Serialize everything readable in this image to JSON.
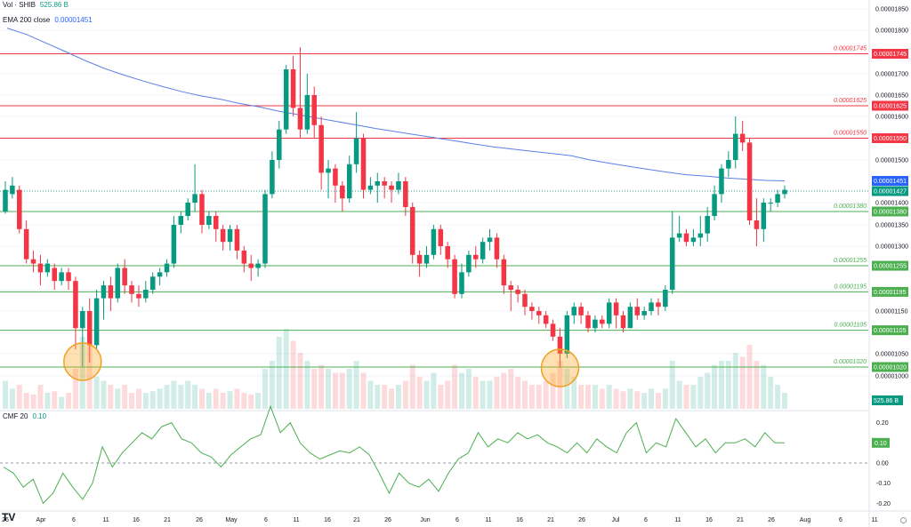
{
  "chart_data": {
    "type": "candlestick",
    "symbol": "SHIB",
    "y_axis": {
      "min": 9.5e-06,
      "max": 1.85e-05,
      "ticks": [
        "0.00001850",
        "0.00001800",
        "0.00001750",
        "0.00001700",
        "0.00001650",
        "0.00001600",
        "0.00001500",
        "0.00001400",
        "0.00001350",
        "0.00001300",
        "0.00001200",
        "0.00001150",
        "0.00001050",
        "0.00001000"
      ]
    },
    "x_axis": {
      "labels": [
        "26",
        "Apr",
        "6",
        "11",
        "16",
        "21",
        "26",
        "May",
        "6",
        "11",
        "16",
        "21",
        "26",
        "Jun",
        "6",
        "11",
        "16",
        "21",
        "26",
        "Jul",
        "6",
        "11",
        "16",
        "21",
        "26",
        "Aug",
        "6",
        "11"
      ]
    },
    "legends": {
      "volume": {
        "label": "Vol · SHIB",
        "value": "525.86 B"
      },
      "ema": {
        "label": "EMA 200 close",
        "value": "0.00001451"
      },
      "cmf": {
        "label": "CMF 20",
        "value": "0.10"
      }
    },
    "levels": [
      {
        "value": "0.00001745",
        "color": "#f23645"
      },
      {
        "value": "0.00001625",
        "color": "#f23645"
      },
      {
        "value": "0.00001550",
        "color": "#f23645"
      },
      {
        "value": "0.00001380",
        "color": "#4caf50"
      },
      {
        "value": "0.00001255",
        "color": "#4caf50"
      },
      {
        "value": "0.00001195",
        "color": "#4caf50"
      },
      {
        "value": "0.00001105",
        "color": "#4caf50"
      },
      {
        "value": "0.00001020",
        "color": "#4caf50"
      }
    ],
    "price_tags": [
      {
        "value": "0.00001451",
        "color": "#2962ff"
      },
      {
        "value": "0.00001427",
        "color": "#089981"
      }
    ],
    "volume_tag": {
      "value": "525.86 B",
      "color": "#089981"
    },
    "candles": [
      [
        1.38e-05,
        1.43e-05,
        1.375e-05,
        1.45e-05
      ],
      [
        1.42e-05,
        1.44e-05,
        1.41e-05,
        1.46e-05
      ],
      [
        1.43e-05,
        1.34e-05,
        1.33e-05,
        1.44e-05
      ],
      [
        1.34e-05,
        1.27e-05,
        1.26e-05,
        1.36e-05
      ],
      [
        1.27e-05,
        1.26e-05,
        1.24e-05,
        1.29e-05
      ],
      [
        1.26e-05,
        1.24e-05,
        1.21e-05,
        1.28e-05
      ],
      [
        1.24e-05,
        1.26e-05,
        1.23e-05,
        1.27e-05
      ],
      [
        1.25e-05,
        1.22e-05,
        1.2e-05,
        1.26e-05
      ],
      [
        1.22e-05,
        1.24e-05,
        1.21e-05,
        1.25e-05
      ],
      [
        1.24e-05,
        1.22e-05,
        1.2e-05,
        1.25e-05
      ],
      [
        1.22e-05,
        1.11e-05,
        1.06e-05,
        1.23e-05
      ],
      [
        1.11e-05,
        1.15e-05,
        1.02e-05,
        1.16e-05
      ],
      [
        1.15e-05,
        1.07e-05,
        1.03e-05,
        1.18e-05
      ],
      [
        1.07e-05,
        1.18e-05,
        1.06e-05,
        1.2e-05
      ],
      [
        1.18e-05,
        1.21e-05,
        1.13e-05,
        1.22e-05
      ],
      [
        1.21e-05,
        1.18e-05,
        1.15e-05,
        1.23e-05
      ],
      [
        1.18e-05,
        1.25e-05,
        1.17e-05,
        1.26e-05
      ],
      [
        1.25e-05,
        1.21e-05,
        1.19e-05,
        1.27e-05
      ],
      [
        1.21e-05,
        1.19e-05,
        1.17e-05,
        1.22e-05
      ],
      [
        1.19e-05,
        1.18e-05,
        1.16e-05,
        1.21e-05
      ],
      [
        1.18e-05,
        1.2e-05,
        1.17e-05,
        1.22e-05
      ],
      [
        1.2e-05,
        1.23e-05,
        1.19e-05,
        1.24e-05
      ],
      [
        1.23e-05,
        1.24e-05,
        1.21e-05,
        1.25e-05
      ],
      [
        1.24e-05,
        1.26e-05,
        1.23e-05,
        1.27e-05
      ],
      [
        1.26e-05,
        1.35e-05,
        1.25e-05,
        1.37e-05
      ],
      [
        1.35e-05,
        1.37e-05,
        1.33e-05,
        1.38e-05
      ],
      [
        1.37e-05,
        1.4e-05,
        1.36e-05,
        1.41e-05
      ],
      [
        1.4e-05,
        1.42e-05,
        1.38e-05,
        1.49e-05
      ],
      [
        1.42e-05,
        1.35e-05,
        1.33e-05,
        1.43e-05
      ],
      [
        1.35e-05,
        1.37e-05,
        1.34e-05,
        1.38e-05
      ],
      [
        1.37e-05,
        1.34e-05,
        1.31e-05,
        1.38e-05
      ],
      [
        1.34e-05,
        1.31e-05,
        1.29e-05,
        1.35e-05
      ],
      [
        1.31e-05,
        1.34e-05,
        1.29e-05,
        1.35e-05
      ],
      [
        1.34e-05,
        1.29e-05,
        1.27e-05,
        1.35e-05
      ],
      [
        1.29e-05,
        1.26e-05,
        1.24e-05,
        1.3e-05
      ],
      [
        1.26e-05,
        1.25e-05,
        1.22e-05,
        1.28e-05
      ],
      [
        1.25e-05,
        1.26e-05,
        1.23e-05,
        1.27e-05
      ],
      [
        1.26e-05,
        1.42e-05,
        1.25e-05,
        1.43e-05
      ],
      [
        1.42e-05,
        1.5e-05,
        1.41e-05,
        1.52e-05
      ],
      [
        1.5e-05,
        1.57e-05,
        1.48e-05,
        1.59e-05
      ],
      [
        1.57e-05,
        1.71e-05,
        1.56e-05,
        1.72e-05
      ],
      [
        1.71e-05,
        1.62e-05,
        1.6e-05,
        1.74e-05
      ],
      [
        1.62e-05,
        1.57e-05,
        1.55e-05,
        1.76e-05
      ],
      [
        1.57e-05,
        1.65e-05,
        1.56e-05,
        1.7e-05
      ],
      [
        1.65e-05,
        1.58e-05,
        1.55e-05,
        1.67e-05
      ],
      [
        1.58e-05,
        1.47e-05,
        1.43e-05,
        1.6e-05
      ],
      [
        1.47e-05,
        1.48e-05,
        1.41e-05,
        1.5e-05
      ],
      [
        1.48e-05,
        1.44e-05,
        1.4e-05,
        1.49e-05
      ],
      [
        1.44e-05,
        1.41e-05,
        1.38e-05,
        1.45e-05
      ],
      [
        1.41e-05,
        1.49e-05,
        1.4e-05,
        1.51e-05
      ],
      [
        1.49e-05,
        1.55e-05,
        1.47e-05,
        1.61e-05
      ],
      [
        1.55e-05,
        1.43e-05,
        1.41e-05,
        1.56e-05
      ],
      [
        1.43e-05,
        1.44e-05,
        1.42e-05,
        1.46e-05
      ],
      [
        1.44e-05,
        1.45e-05,
        1.4e-05,
        1.47e-05
      ],
      [
        1.45e-05,
        1.44e-05,
        1.41e-05,
        1.46e-05
      ],
      [
        1.44e-05,
        1.43e-05,
        1.4e-05,
        1.45e-05
      ],
      [
        1.43e-05,
        1.45e-05,
        1.42e-05,
        1.47e-05
      ],
      [
        1.45e-05,
        1.39e-05,
        1.37e-05,
        1.46e-05
      ],
      [
        1.39e-05,
        1.28e-05,
        1.26e-05,
        1.4e-05
      ],
      [
        1.28e-05,
        1.26e-05,
        1.23e-05,
        1.29e-05
      ],
      [
        1.26e-05,
        1.28e-05,
        1.25e-05,
        1.3e-05
      ],
      [
        1.28e-05,
        1.34e-05,
        1.27e-05,
        1.35e-05
      ],
      [
        1.34e-05,
        1.3e-05,
        1.28e-05,
        1.35e-05
      ],
      [
        1.3e-05,
        1.27e-05,
        1.25e-05,
        1.31e-05
      ],
      [
        1.27e-05,
        1.19e-05,
        1.18e-05,
        1.28e-05
      ],
      [
        1.19e-05,
        1.24e-05,
        1.18e-05,
        1.26e-05
      ],
      [
        1.24e-05,
        1.28e-05,
        1.23e-05,
        1.29e-05
      ],
      [
        1.28e-05,
        1.27e-05,
        1.25e-05,
        1.3e-05
      ],
      [
        1.27e-05,
        1.31e-05,
        1.26e-05,
        1.32e-05
      ],
      [
        1.31e-05,
        1.32e-05,
        1.29e-05,
        1.34e-05
      ],
      [
        1.32e-05,
        1.27e-05,
        1.25e-05,
        1.33e-05
      ],
      [
        1.27e-05,
        1.21e-05,
        1.19e-05,
        1.28e-05
      ],
      [
        1.21e-05,
        1.2e-05,
        1.15e-05,
        1.22e-05
      ],
      [
        1.2e-05,
        1.19e-05,
        1.17e-05,
        1.21e-05
      ],
      [
        1.19e-05,
        1.16e-05,
        1.14e-05,
        1.2e-05
      ],
      [
        1.16e-05,
        1.15e-05,
        1.13e-05,
        1.17e-05
      ],
      [
        1.15e-05,
        1.14e-05,
        1.12e-05,
        1.16e-05
      ],
      [
        1.14e-05,
        1.12e-05,
        1.11e-05,
        1.15e-05
      ],
      [
        1.12e-05,
        1.09e-05,
        1.08e-05,
        1.13e-05
      ],
      [
        1.09e-05,
        1.05e-05,
        1.02e-05,
        1.11e-05
      ],
      [
        1.05e-05,
        1.14e-05,
        1.04e-05,
        1.15e-05
      ],
      [
        1.14e-05,
        1.16e-05,
        1.12e-05,
        1.17e-05
      ],
      [
        1.16e-05,
        1.14e-05,
        1.12e-05,
        1.17e-05
      ],
      [
        1.14e-05,
        1.11e-05,
        1.1e-05,
        1.15e-05
      ],
      [
        1.11e-05,
        1.13e-05,
        1.1e-05,
        1.14e-05
      ],
      [
        1.13e-05,
        1.12e-05,
        1.11e-05,
        1.14e-05
      ],
      [
        1.12e-05,
        1.17e-05,
        1.11e-05,
        1.18e-05
      ],
      [
        1.17e-05,
        1.14e-05,
        1.11e-05,
        1.18e-05
      ],
      [
        1.14e-05,
        1.11e-05,
        1.1e-05,
        1.15e-05
      ],
      [
        1.11e-05,
        1.16e-05,
        1.11e-05,
        1.17e-05
      ],
      [
        1.16e-05,
        1.14e-05,
        1.13e-05,
        1.18e-05
      ],
      [
        1.14e-05,
        1.15e-05,
        1.13e-05,
        1.16e-05
      ],
      [
        1.15e-05,
        1.17e-05,
        1.14e-05,
        1.18e-05
      ],
      [
        1.17e-05,
        1.16e-05,
        1.14e-05,
        1.18e-05
      ],
      [
        1.16e-05,
        1.2e-05,
        1.15e-05,
        1.21e-05
      ],
      [
        1.2e-05,
        1.32e-05,
        1.19e-05,
        1.38e-05
      ],
      [
        1.32e-05,
        1.33e-05,
        1.31e-05,
        1.37e-05
      ],
      [
        1.33e-05,
        1.31e-05,
        1.3e-05,
        1.34e-05
      ],
      [
        1.31e-05,
        1.32e-05,
        1.3e-05,
        1.34e-05
      ],
      [
        1.32e-05,
        1.33e-05,
        1.3e-05,
        1.37e-05
      ],
      [
        1.33e-05,
        1.37e-05,
        1.31e-05,
        1.39e-05
      ],
      [
        1.37e-05,
        1.42e-05,
        1.36e-05,
        1.44e-05
      ],
      [
        1.42e-05,
        1.48e-05,
        1.4e-05,
        1.49e-05
      ],
      [
        1.48e-05,
        1.5e-05,
        1.46e-05,
        1.52e-05
      ],
      [
        1.5e-05,
        1.56e-05,
        1.48e-05,
        1.6e-05
      ],
      [
        1.56e-05,
        1.54e-05,
        1.52e-05,
        1.59e-05
      ],
      [
        1.54e-05,
        1.36e-05,
        1.35e-05,
        1.55e-05
      ],
      [
        1.36e-05,
        1.34e-05,
        1.3e-05,
        1.41e-05
      ],
      [
        1.34e-05,
        1.4e-05,
        1.31e-05,
        1.41e-05
      ],
      [
        1.4e-05,
        1.4e-05,
        1.38e-05,
        1.41e-05
      ],
      [
        1.4e-05,
        1.42e-05,
        1.39e-05,
        1.43e-05
      ],
      [
        1.42e-05,
        1.43e-05,
        1.41e-05,
        1.44e-05
      ]
    ],
    "volume": [
      0.35,
      0.25,
      0.3,
      0.2,
      0.18,
      0.3,
      0.2,
      0.22,
      0.15,
      0.2,
      0.5,
      0.9,
      0.8,
      0.4,
      0.35,
      0.3,
      0.25,
      0.3,
      0.2,
      0.25,
      0.2,
      0.22,
      0.25,
      0.3,
      0.35,
      0.3,
      0.35,
      0.3,
      0.25,
      0.2,
      0.25,
      0.2,
      0.22,
      0.25,
      0.2,
      0.18,
      0.2,
      0.5,
      0.6,
      0.9,
      1.0,
      0.85,
      0.7,
      0.6,
      0.5,
      0.55,
      0.5,
      0.45,
      0.45,
      0.5,
      0.6,
      0.45,
      0.35,
      0.3,
      0.3,
      0.25,
      0.3,
      0.35,
      0.55,
      0.4,
      0.35,
      0.45,
      0.3,
      0.35,
      0.55,
      0.45,
      0.5,
      0.4,
      0.35,
      0.35,
      0.4,
      0.45,
      0.5,
      0.4,
      0.35,
      0.3,
      0.3,
      0.35,
      0.45,
      0.6,
      0.5,
      0.4,
      0.3,
      0.3,
      0.3,
      0.25,
      0.3,
      0.25,
      0.22,
      0.25,
      0.22,
      0.2,
      0.25,
      0.2,
      0.25,
      0.6,
      0.35,
      0.3,
      0.3,
      0.4,
      0.45,
      0.55,
      0.6,
      0.6,
      0.7,
      0.65,
      0.8,
      0.6,
      0.55,
      0.4,
      0.3,
      0.2
    ],
    "ema200": [
      1.805e-05,
      1.79e-05,
      1.77e-05,
      1.75e-05,
      1.73e-05,
      1.712e-05,
      1.697e-05,
      1.683e-05,
      1.67e-05,
      1.658e-05,
      1.648e-05,
      1.64e-05,
      1.63e-05,
      1.622e-05,
      1.612e-05,
      1.604e-05,
      1.596e-05,
      1.588e-05,
      1.58e-05,
      1.572e-05,
      1.565e-05,
      1.558e-05,
      1.551e-05,
      1.544e-05,
      1.537e-05,
      1.53e-05,
      1.525e-05,
      1.52e-05,
      1.515e-05,
      1.51e-05,
      1.5e-05,
      1.492e-05,
      1.485e-05,
      1.478e-05,
      1.471e-05,
      1.465e-05,
      1.462e-05,
      1.458e-05,
      1.455e-05,
      1.452e-05,
      1.451e-05
    ],
    "cmf": [
      -0.02,
      -0.05,
      -0.12,
      -0.08,
      -0.2,
      -0.15,
      -0.05,
      -0.12,
      -0.18,
      -0.1,
      0.08,
      -0.02,
      0.05,
      0.1,
      0.15,
      0.12,
      0.18,
      0.2,
      0.12,
      0.1,
      0.05,
      0.03,
      -0.02,
      0.04,
      0.08,
      0.12,
      0.14,
      0.28,
      0.15,
      0.2,
      0.1,
      0.05,
      0.02,
      0.04,
      0.06,
      0.05,
      0.08,
      0.04,
      -0.05,
      -0.15,
      -0.05,
      -0.1,
      -0.12,
      -0.08,
      -0.14,
      -0.05,
      0.02,
      0.05,
      0.15,
      0.08,
      0.12,
      0.1,
      0.15,
      0.12,
      0.14,
      0.1,
      0.08,
      0.05,
      0.1,
      0.05,
      0.12,
      0.08,
      0.05,
      0.15,
      0.2,
      0.05,
      0.1,
      0.08,
      0.22,
      0.15,
      0.08,
      0.12,
      0.05,
      0.1,
      0.1,
      0.12,
      0.08,
      0.15,
      0.1,
      0.1
    ]
  }
}
